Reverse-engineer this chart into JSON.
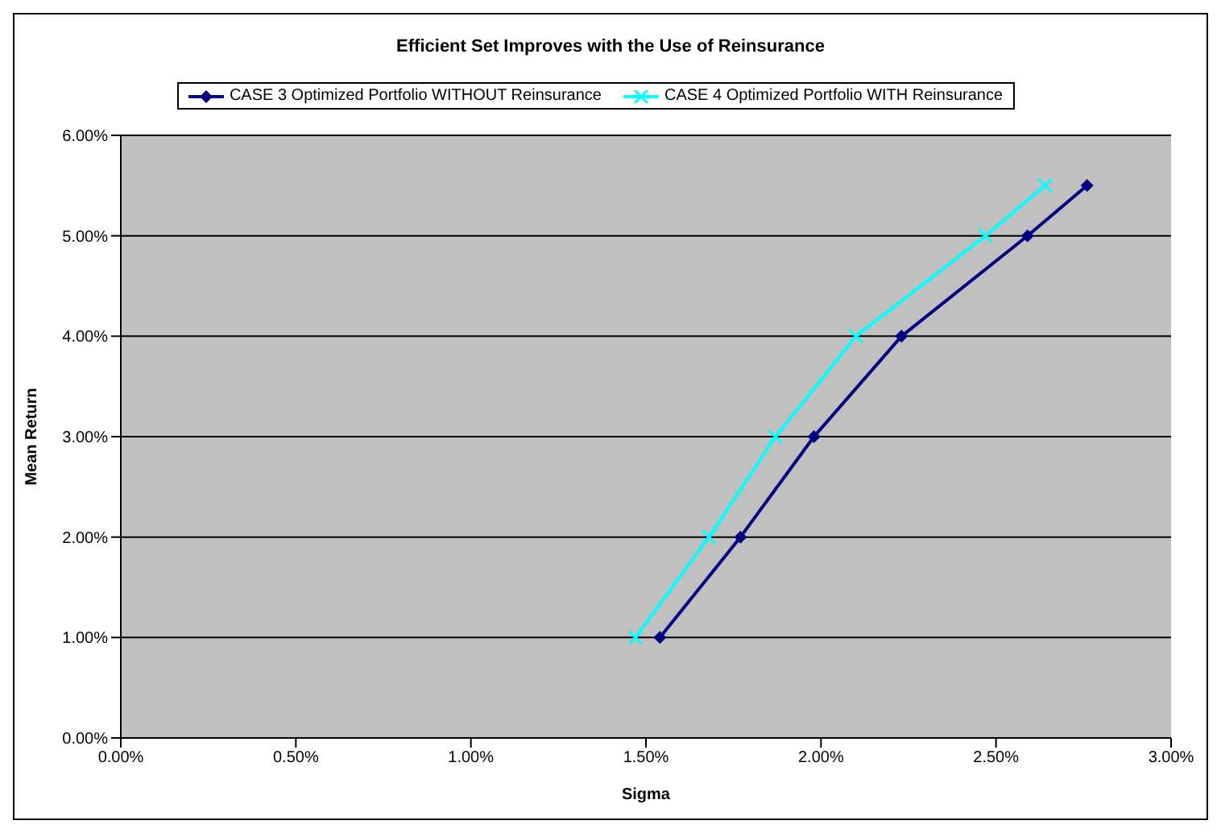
{
  "chart_data": {
    "type": "line",
    "title": "Efficient Set Improves with the Use of Reinsurance",
    "xlabel": "Sigma",
    "ylabel": "Mean Return",
    "series": [
      {
        "name": "CASE 3 Optimized Portfolio WITHOUT Reinsurance",
        "color": "#000080",
        "marker": "diamond",
        "x": [
          1.54,
          1.77,
          1.98,
          2.23,
          2.59,
          2.76
        ],
        "values": [
          1,
          2,
          3,
          4,
          5,
          5.5
        ]
      },
      {
        "name": "CASE 4 Optimized Portfolio WITH Reinsurance",
        "color": "#00ffff",
        "marker": "cross",
        "x": [
          1.47,
          1.68,
          1.87,
          2.1,
          2.47,
          2.64
        ],
        "values": [
          1,
          2,
          3,
          4,
          5,
          5.5
        ]
      }
    ],
    "xlim": [
      0,
      3
    ],
    "xticks": [
      {
        "value": 0,
        "label": "0.00%"
      },
      {
        "value": 0.5,
        "label": "0.50%"
      },
      {
        "value": 1,
        "label": "1.00%"
      },
      {
        "value": 1.5,
        "label": "1.50%"
      },
      {
        "value": 2,
        "label": "2.00%"
      },
      {
        "value": 2.5,
        "label": "2.50%"
      },
      {
        "value": 3,
        "label": "3.00%"
      }
    ],
    "ylim": [
      0,
      6
    ],
    "yticks": [
      {
        "value": 0,
        "label": "0.00%"
      },
      {
        "value": 1,
        "label": "1.00%"
      },
      {
        "value": 2,
        "label": "2.00%"
      },
      {
        "value": 3,
        "label": "3.00%"
      },
      {
        "value": 4,
        "label": "4.00%"
      },
      {
        "value": 5,
        "label": "5.00%"
      },
      {
        "value": 6,
        "label": "6.00%"
      }
    ],
    "grid": "y",
    "legend": "top",
    "line_style": "solid"
  }
}
